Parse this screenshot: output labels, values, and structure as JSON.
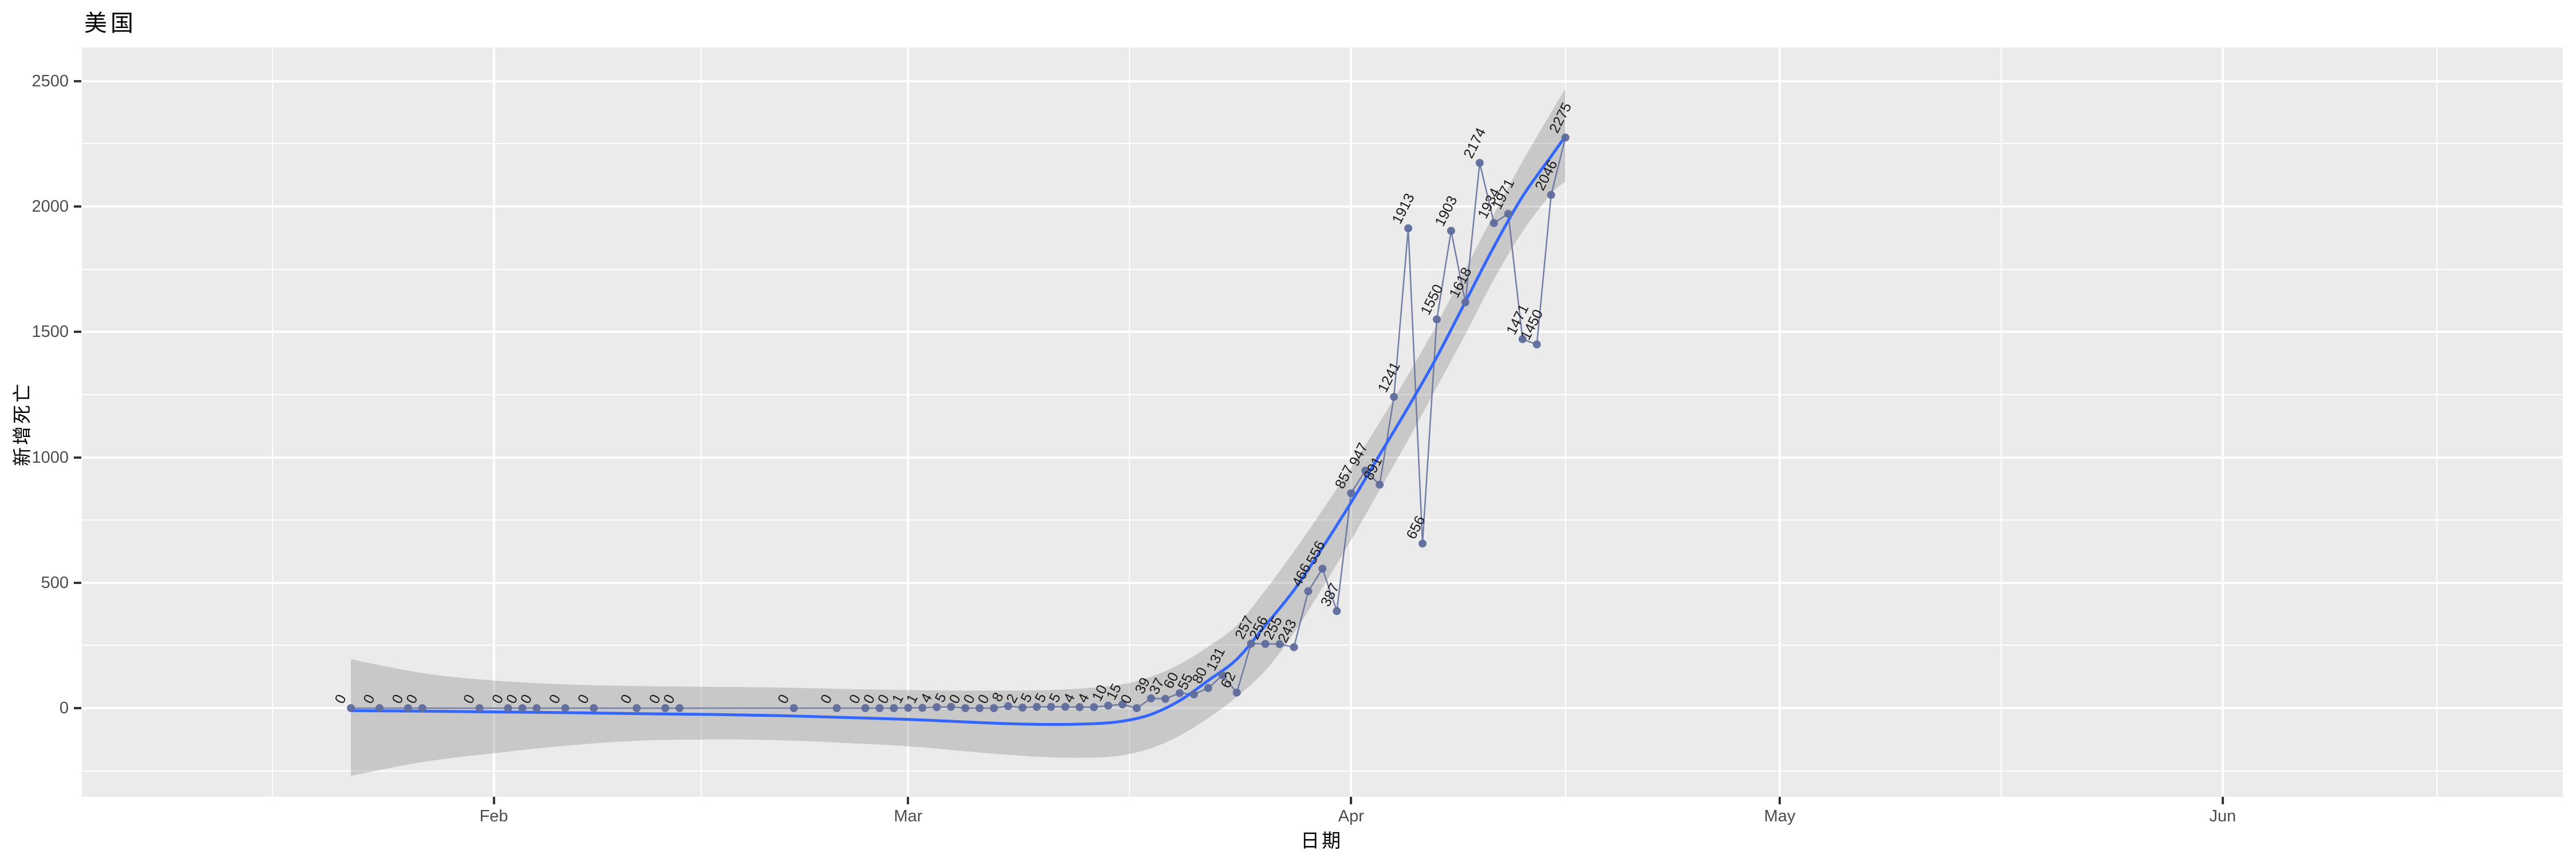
{
  "title": "美国",
  "axes": {
    "x_title": "日期",
    "y_title": "新增死亡",
    "x_ticks": [
      {
        "label": "Feb",
        "day": 10
      },
      {
        "label": "Mar",
        "day": 39
      },
      {
        "label": "Apr",
        "day": 70
      },
      {
        "label": "May",
        "day": 100
      },
      {
        "label": "Jun",
        "day": 131
      }
    ],
    "y_ticks": [
      0,
      500,
      1000,
      1500,
      2000,
      2500
    ]
  },
  "colors": {
    "panel_bg": "#ebebeb",
    "grid": "#ffffff",
    "smooth_line": "#3366ff",
    "ribbon": "rgba(119,119,119,0.30)",
    "series": "#5f6c9b",
    "point": "#5f6c9b",
    "label_text": "#1a1a1a",
    "axis_text": "#4d4d4d",
    "tick_mark": "#333333",
    "title_text": "#000000"
  },
  "chart_data": {
    "type": "line",
    "title": "美国",
    "xlabel": "日期",
    "ylabel": "新增死亡",
    "x_tick_labels": [
      "Feb",
      "Mar",
      "Apr",
      "May",
      "Jun"
    ],
    "y_ticks": [
      0,
      500,
      1000,
      1500,
      2000,
      2500
    ],
    "ylim": [
      -350,
      2620
    ],
    "x_start_date": "2020-01-22",
    "x_end_date": "2020-04-16",
    "grid": true,
    "legend": "none",
    "points_labeled": true,
    "series": [
      {
        "name": "新增死亡",
        "points": [
          [
            "2020-01-22",
            0
          ],
          [
            "2020-01-24",
            0
          ],
          [
            "2020-01-26",
            0
          ],
          [
            "2020-01-27",
            0
          ],
          [
            "2020-01-31",
            0
          ],
          [
            "2020-02-02",
            0
          ],
          [
            "2020-02-03",
            0
          ],
          [
            "2020-02-04",
            0
          ],
          [
            "2020-02-06",
            0
          ],
          [
            "2020-02-08",
            0
          ],
          [
            "2020-02-11",
            0
          ],
          [
            "2020-02-13",
            0
          ],
          [
            "2020-02-14",
            0
          ],
          [
            "2020-02-22",
            0
          ],
          [
            "2020-02-25",
            0
          ],
          [
            "2020-02-27",
            0
          ],
          [
            "2020-02-28",
            0
          ],
          [
            "2020-02-29",
            0
          ],
          [
            "2020-03-01",
            1
          ],
          [
            "2020-03-02",
            1
          ],
          [
            "2020-03-03",
            4
          ],
          [
            "2020-03-04",
            5
          ],
          [
            "2020-03-05",
            0
          ],
          [
            "2020-03-06",
            0
          ],
          [
            "2020-03-07",
            0
          ],
          [
            "2020-03-08",
            8
          ],
          [
            "2020-03-09",
            2
          ],
          [
            "2020-03-10",
            5
          ],
          [
            "2020-03-11",
            5
          ],
          [
            "2020-03-12",
            5
          ],
          [
            "2020-03-13",
            4
          ],
          [
            "2020-03-14",
            4
          ],
          [
            "2020-03-15",
            10
          ],
          [
            "2020-03-16",
            15
          ],
          [
            "2020-03-17",
            0
          ],
          [
            "2020-03-18",
            39
          ],
          [
            "2020-03-19",
            37
          ],
          [
            "2020-03-20",
            60
          ],
          [
            "2020-03-21",
            55
          ],
          [
            "2020-03-22",
            80
          ],
          [
            "2020-03-23",
            131
          ],
          [
            "2020-03-24",
            62
          ],
          [
            "2020-03-25",
            257
          ],
          [
            "2020-03-26",
            256
          ],
          [
            "2020-03-27",
            255
          ],
          [
            "2020-03-28",
            243
          ],
          [
            "2020-03-29",
            466
          ],
          [
            "2020-03-30",
            556
          ],
          [
            "2020-03-31",
            387
          ],
          [
            "2020-04-01",
            857
          ],
          [
            "2020-04-02",
            947
          ],
          [
            "2020-04-03",
            891
          ],
          [
            "2020-04-04",
            1241
          ],
          [
            "2020-04-05",
            1913
          ],
          [
            "2020-04-06",
            656
          ],
          [
            "2020-04-07",
            1550
          ],
          [
            "2020-04-08",
            1903
          ],
          [
            "2020-04-09",
            1618
          ],
          [
            "2020-04-10",
            2174
          ],
          [
            "2020-04-11",
            1934
          ],
          [
            "2020-04-12",
            1971
          ],
          [
            "2020-04-13",
            1471
          ],
          [
            "2020-04-14",
            1450
          ],
          [
            "2020-04-15",
            2046
          ],
          [
            "2020-04-16",
            2275
          ]
        ]
      }
    ],
    "smooth": {
      "name": "loess-fit-with-confidence-band",
      "day": [
        0,
        5,
        10,
        15,
        20,
        25,
        30,
        35,
        39,
        43,
        46,
        49,
        52,
        54,
        56,
        58,
        60,
        62,
        64,
        66,
        68,
        70,
        72,
        74,
        76,
        78,
        80,
        82,
        84,
        85
      ],
      "fit": [
        -10,
        -12,
        -15,
        -18,
        -22,
        -25,
        -30,
        -38,
        -45,
        -55,
        -62,
        -65,
        -62,
        -52,
        -25,
        30,
        110,
        195,
        330,
        470,
        640,
        820,
        1010,
        1200,
        1400,
        1620,
        1840,
        2040,
        2200,
        2280
      ],
      "upper": [
        195,
        140,
        110,
        95,
        88,
        85,
        82,
        76,
        72,
        70,
        70,
        72,
        82,
        95,
        125,
        175,
        245,
        330,
        470,
        625,
        790,
        960,
        1140,
        1330,
        1530,
        1750,
        1970,
        2180,
        2375,
        2470
      ],
      "lower": [
        -270,
        -215,
        -180,
        -150,
        -130,
        -125,
        -128,
        -140,
        -152,
        -172,
        -186,
        -196,
        -197,
        -188,
        -160,
        -110,
        -40,
        45,
        150,
        300,
        480,
        670,
        870,
        1070,
        1280,
        1490,
        1710,
        1900,
        2050,
        2100
      ]
    }
  }
}
